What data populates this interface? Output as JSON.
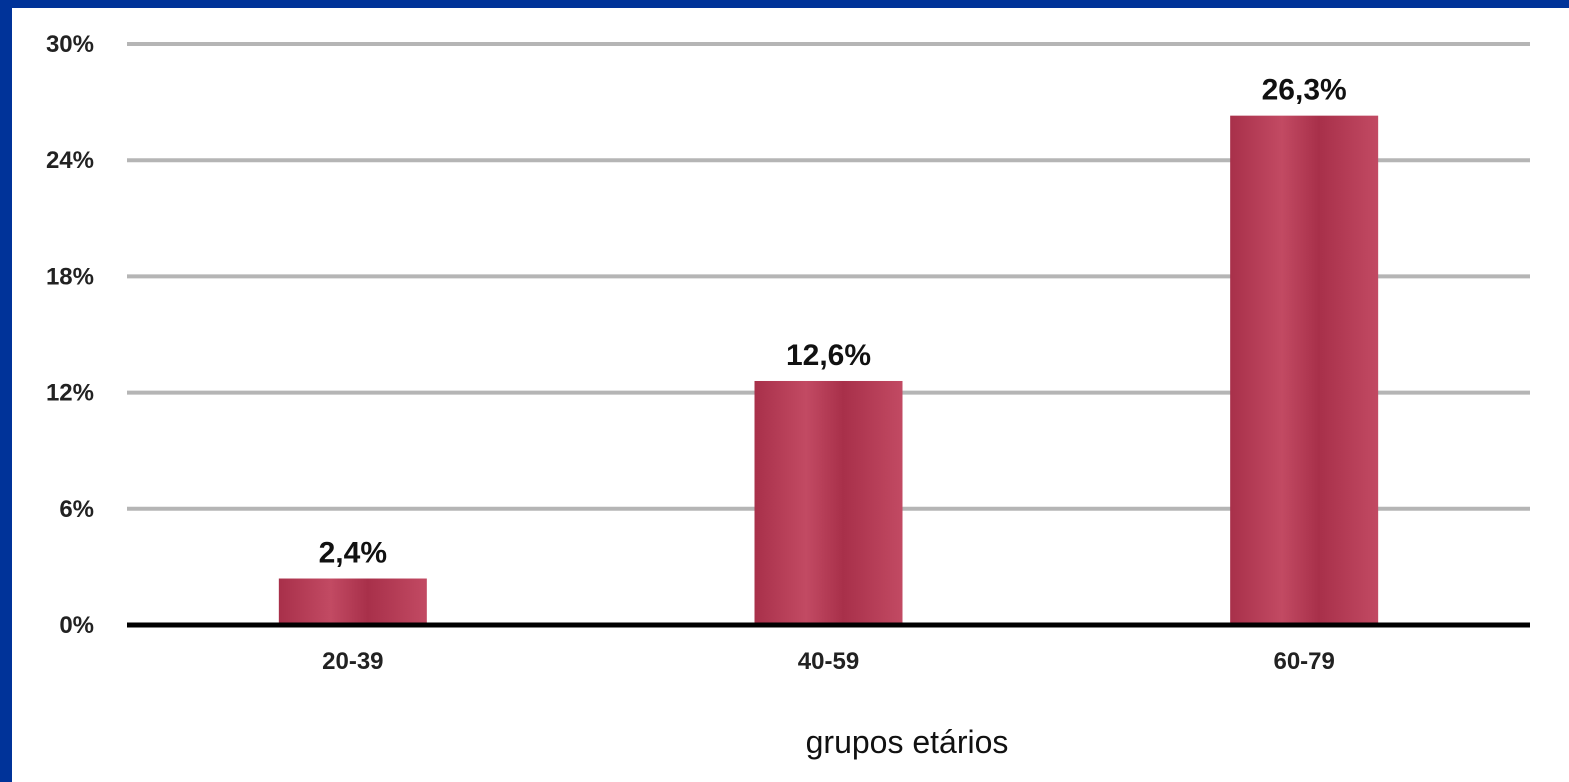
{
  "chart_data": {
    "type": "bar",
    "categories": [
      "20-39",
      "40-59",
      "60-79"
    ],
    "values": [
      2.4,
      12.6,
      26.3
    ],
    "value_labels": [
      "2,4%",
      "12,6%",
      "26,3%"
    ],
    "ylim": [
      0,
      30
    ],
    "yticks": [
      0,
      6,
      12,
      18,
      24,
      30
    ],
    "ytick_labels": [
      "0%",
      "6%",
      "12%",
      "18%",
      "24%",
      "30%"
    ],
    "xlabel": "grupos etários",
    "ylabel": "",
    "title": "",
    "grid": true,
    "legend": "none",
    "colors": {
      "bar": "#a8304a",
      "bar_highlight": "#c24a63",
      "grid": "#b5b5b5",
      "axis": "#000000",
      "frame": "#003399"
    }
  }
}
